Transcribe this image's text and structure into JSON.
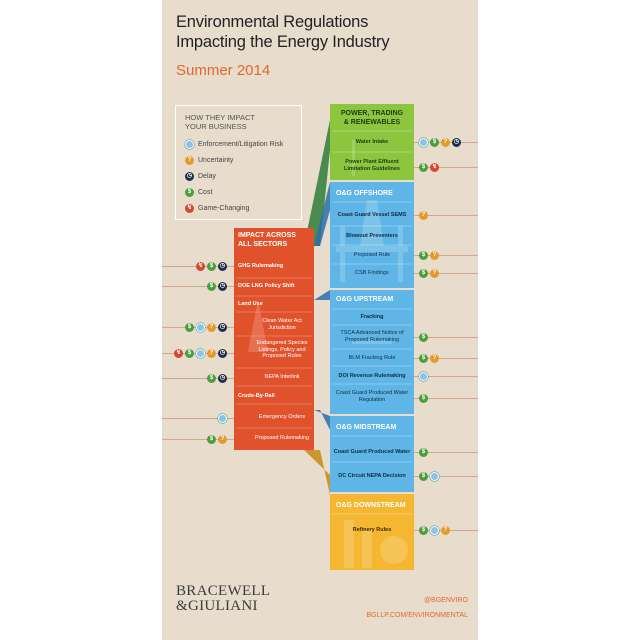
{
  "header": {
    "title_line1": "Environmental Regulations",
    "title_line2": "Impacting the Energy Industry",
    "subtitle": "Summer 2014"
  },
  "legend": {
    "title_line1": "HOW THEY IMPACT",
    "title_line2": "YOUR BUSINESS",
    "items": [
      {
        "label": "Enforcement/Litigation Risk",
        "icon": "enforcement-icon",
        "glyph": ""
      },
      {
        "label": "Uncertainty",
        "icon": "uncertainty-icon",
        "glyph": "?"
      },
      {
        "label": "Delay",
        "icon": "delay-icon",
        "glyph": "◷"
      },
      {
        "label": "Cost",
        "icon": "cost-icon",
        "glyph": "$"
      },
      {
        "label": "Game-Changing",
        "icon": "game-changing-icon",
        "glyph": "↯"
      }
    ]
  },
  "colors": {
    "background": "#e8dccd",
    "all_sectors": "#e0522c",
    "power": "#8cc63f",
    "offshore": "#5fb6e6",
    "upstream": "#5fb6e6",
    "midstream": "#5fb6e6",
    "downstream": "#f5b731",
    "accent": "#e0692c"
  },
  "all_sectors": {
    "title_line1": "IMPACT ACROSS",
    "title_line2": "ALL SECTORS",
    "items": [
      {
        "label": "GHG Rulemaking",
        "bold": true,
        "icons": [
          "gc",
          "cost",
          "del"
        ]
      },
      {
        "label": "DOE LNG Policy Shift",
        "bold": true,
        "icons": [
          "cost",
          "del"
        ]
      },
      {
        "label": "Land Use",
        "bold": true,
        "icons": []
      },
      {
        "label": "Clean Water Act Jurisdiction",
        "bold": false,
        "icons": [
          "cost",
          "enf",
          "unc",
          "del"
        ]
      },
      {
        "label": "Endangered Species Listings, Policy and Proposed Rules",
        "bold": false,
        "icons": [
          "gc",
          "cost",
          "enf",
          "unc",
          "del"
        ]
      },
      {
        "label": "NEPA Interlink",
        "bold": false,
        "icons": [
          "cost",
          "del"
        ]
      },
      {
        "label": "Crude-By-Rail",
        "bold": true,
        "icons": []
      },
      {
        "label": "Emergency Orders",
        "bold": false,
        "icons": [
          "enf"
        ]
      },
      {
        "label": "Proposed Rulemaking",
        "bold": false,
        "icons": [
          "cost",
          "unc"
        ]
      }
    ]
  },
  "power": {
    "title_line1": "POWER, TRADING",
    "title_line2": "& RENEWABLES",
    "items": [
      {
        "label": "Water Intake",
        "bold": true,
        "icons": [
          "enf",
          "cost",
          "unc",
          "del"
        ]
      },
      {
        "label": "Power Plant Effluent Limitation Guidelines",
        "bold": true,
        "icons": [
          "cost",
          "gc"
        ]
      }
    ]
  },
  "offshore": {
    "title": "O&G OFFSHORE",
    "items": [
      {
        "label": "Coast Guard Vessel SEMS",
        "bold": true,
        "icons": [
          "unc"
        ]
      },
      {
        "label": "Blowout Preventers",
        "bold": true,
        "icons": []
      },
      {
        "label": "Proposed Rule",
        "bold": false,
        "icons": [
          "cost",
          "unc"
        ]
      },
      {
        "label": "CSB Findings",
        "bold": false,
        "icons": [
          "cost",
          "unc"
        ]
      }
    ]
  },
  "upstream": {
    "title": "O&G UPSTREAM",
    "items": [
      {
        "label": "Fracking",
        "bold": true,
        "icons": []
      },
      {
        "label": "TSCA Advanced Notice of Proposed Rulemaking",
        "bold": false,
        "icons": [
          "cost"
        ]
      },
      {
        "label": "BLM Fracking Rule",
        "bold": false,
        "icons": [
          "cost",
          "unc"
        ]
      },
      {
        "label": "DOI Revenue Rulemaking",
        "bold": true,
        "icons": [
          "enf"
        ]
      },
      {
        "label": "Coast Guard Produced Water Regulation",
        "bold": false,
        "icons": [
          "cost"
        ]
      }
    ]
  },
  "midstream": {
    "title": "O&G MIDSTREAM",
    "items": [
      {
        "label": "Coast Guard Produced Water",
        "bold": true,
        "icons": [
          "cost"
        ]
      },
      {
        "label": "DC Circuit NEPA Decision",
        "bold": true,
        "icons": [
          "cost",
          "enf"
        ]
      }
    ]
  },
  "downstream": {
    "title": "O&G DOWNSTREAM",
    "items": [
      {
        "label": "Refinery Rules",
        "bold": true,
        "icons": [
          "cost",
          "enf",
          "unc"
        ]
      }
    ]
  },
  "footer": {
    "brand_line1": "BRACEWELL",
    "brand_line2": "&GIULIANI",
    "twitter": "@BGENVIRO",
    "url": "BGLLP.COM/ENVIRONMENTAL"
  }
}
